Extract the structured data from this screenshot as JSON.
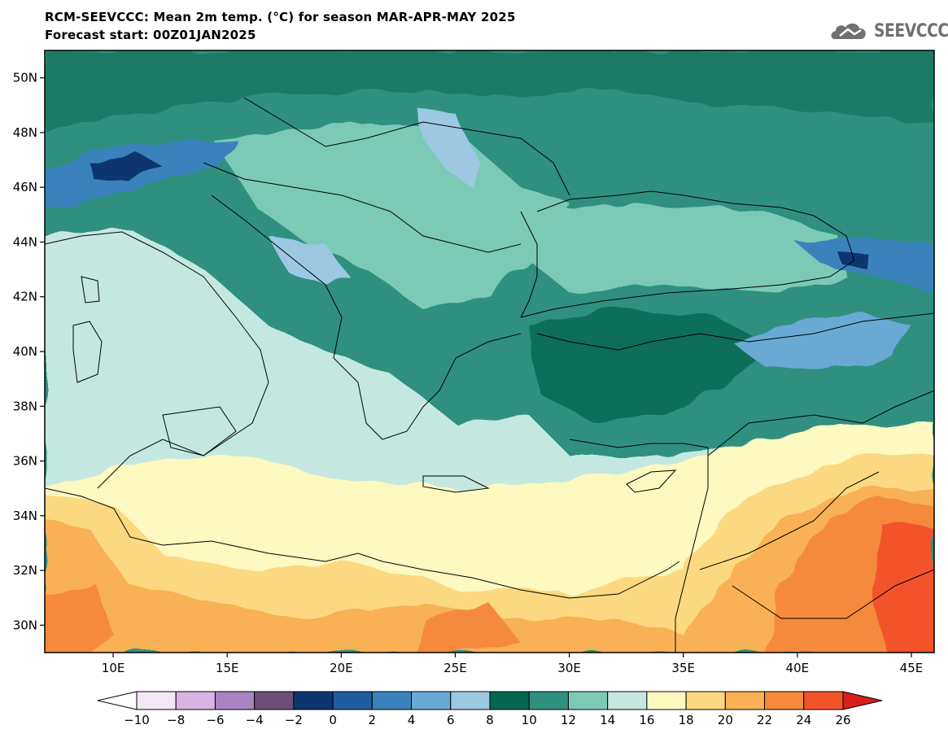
{
  "title_line1": "RCM-SEEVCCC: Mean 2m temp. (°C) for season MAR-APR-MAY 2025",
  "title_line2": "Forecast start: 00Z01JAN2025",
  "logo_text": "SEEVCCC",
  "map": {
    "lon_range": [
      7,
      46
    ],
    "lat_range": [
      29,
      51
    ],
    "x_ticks": [
      "10E",
      "15E",
      "20E",
      "25E",
      "30E",
      "35E",
      "40E",
      "45E"
    ],
    "x_tick_values": [
      10,
      15,
      20,
      25,
      30,
      35,
      40,
      45
    ],
    "y_ticks": [
      "30N",
      "32N",
      "34N",
      "36N",
      "38N",
      "40N",
      "42N",
      "44N",
      "46N",
      "48N",
      "50N"
    ],
    "y_tick_values": [
      30,
      32,
      34,
      36,
      38,
      40,
      42,
      44,
      46,
      48,
      50
    ]
  },
  "colorbar": {
    "labels": [
      "-10",
      "-8",
      "-6",
      "-4",
      "-2",
      "0",
      "2",
      "4",
      "6",
      "8",
      "10",
      "12",
      "14",
      "16",
      "18",
      "20",
      "22",
      "24",
      "26"
    ],
    "min_color": "#ffffff",
    "max_color": "#d7201e",
    "colors": [
      "#f2e6f7",
      "#d9b3e6",
      "#a883c2",
      "#6b4f7a",
      "#0d3570",
      "#1f5d9e",
      "#3b82bd",
      "#6aa9d4",
      "#9cc8e2",
      "#05654f",
      "#2f9080",
      "#7ccab6",
      "#c4e8e0",
      "#fdf9c0",
      "#fcd980",
      "#f8b155",
      "#f58a3c",
      "#f2532a"
    ]
  }
}
